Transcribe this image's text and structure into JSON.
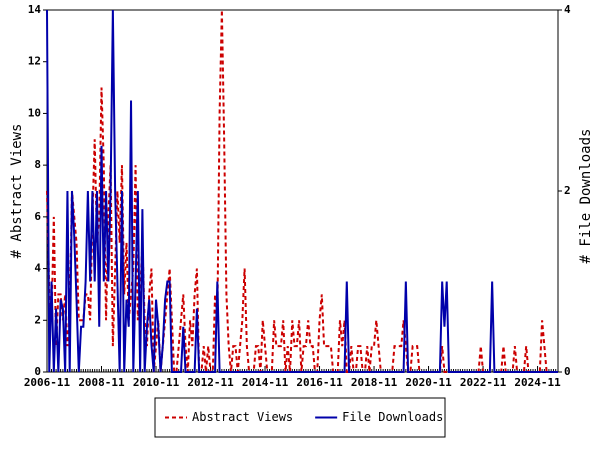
{
  "chart_data": {
    "type": "line",
    "ylabel": "# Abstract Views",
    "y2label": "# File Downloads",
    "categories": [
      "2006-11",
      null,
      null,
      null,
      null,
      null,
      null,
      null,
      null,
      null,
      null,
      null,
      null,
      null,
      null,
      null,
      null,
      null,
      null,
      null,
      null,
      null,
      null,
      null,
      "2008-11",
      null,
      null,
      null,
      null,
      null,
      null,
      null,
      null,
      null,
      null,
      null,
      null,
      null,
      null,
      null,
      null,
      null,
      null,
      null,
      null,
      null,
      null,
      null,
      "2010-11",
      null,
      null,
      null,
      null,
      null,
      null,
      null,
      null,
      null,
      null,
      null,
      null,
      null,
      null,
      null,
      null,
      null,
      null,
      null,
      null,
      null,
      null,
      null,
      "2012-11",
      null,
      null,
      null,
      null,
      null,
      null,
      null,
      null,
      null,
      null,
      null,
      null,
      null,
      null,
      null,
      null,
      null,
      null,
      null,
      null,
      null,
      null,
      null,
      "2014-11",
      null,
      null,
      null,
      null,
      null,
      null,
      null,
      null,
      null,
      null,
      null,
      null,
      null,
      null,
      null,
      null,
      null,
      null,
      null,
      null,
      null,
      null,
      null,
      "2016-11",
      null,
      null,
      null,
      null,
      null,
      null,
      null,
      null,
      null,
      null,
      null,
      null,
      null,
      null,
      null,
      null,
      null,
      null,
      null,
      null,
      null,
      null,
      null,
      "2018-11",
      null,
      null,
      null,
      null,
      null,
      null,
      null,
      null,
      null,
      null,
      null,
      null,
      null,
      null,
      null,
      null,
      null,
      null,
      null,
      null,
      null,
      null,
      null,
      "2020-11",
      null,
      null,
      null,
      null,
      null,
      null,
      null,
      null,
      null,
      null,
      null,
      null,
      null,
      null,
      null,
      null,
      null,
      null,
      null,
      null,
      null,
      null,
      null,
      "2022-11",
      null,
      null,
      null,
      null,
      null,
      null,
      null,
      null,
      null,
      null,
      null,
      null,
      null,
      null,
      null,
      null,
      null,
      null,
      null,
      null,
      null,
      null,
      null,
      "2024-11",
      null,
      null,
      null,
      null,
      null,
      null,
      null,
      null,
      null
    ],
    "series": [
      {
        "name": "Abstract Views",
        "color": "#cc0000",
        "dash": true,
        "values": [
          7,
          3,
          2,
          6,
          1,
          3,
          3,
          2,
          3,
          1,
          2,
          7,
          6,
          5,
          2,
          2,
          2,
          3,
          3,
          2,
          6,
          9,
          5,
          6,
          11,
          8,
          2,
          6,
          8,
          1,
          4,
          7,
          5,
          8,
          3,
          5,
          2,
          3,
          4,
          8,
          2,
          3,
          5,
          2,
          1,
          3,
          4,
          0,
          1,
          2,
          0,
          1,
          2,
          3,
          4,
          2,
          0,
          0,
          1,
          2,
          3,
          1,
          0,
          2,
          1,
          3,
          4,
          0,
          0,
          1,
          0,
          1,
          0,
          0,
          3,
          2,
          10,
          14,
          9,
          3,
          1,
          0,
          1,
          1,
          0,
          1,
          2,
          4,
          1,
          0,
          0,
          0,
          1,
          1,
          0,
          2,
          1,
          0,
          0,
          0,
          2,
          1,
          1,
          1,
          2,
          0,
          1,
          0,
          2,
          1,
          1,
          2,
          0,
          1,
          1,
          2,
          1,
          1,
          0,
          0,
          2,
          3,
          1,
          1,
          1,
          1,
          0,
          0,
          0,
          2,
          1,
          2,
          0,
          0,
          1,
          0,
          0,
          1,
          1,
          0,
          0,
          1,
          0,
          1,
          1,
          2,
          1,
          0,
          0,
          0,
          0,
          0,
          0,
          1,
          1,
          1,
          1,
          2,
          1,
          0,
          0,
          1,
          1,
          1,
          0,
          0,
          0,
          0,
          0,
          0,
          0,
          0,
          0,
          0,
          1,
          0,
          0,
          0,
          0,
          0,
          0,
          0,
          0,
          0,
          0,
          0,
          0,
          0,
          0,
          0,
          0,
          1,
          0,
          0,
          0,
          0,
          0,
          0,
          0,
          0,
          0,
          1,
          0,
          0,
          0,
          0,
          1,
          0,
          0,
          0,
          0,
          1,
          0,
          0,
          0,
          0,
          0,
          0,
          2,
          1,
          0,
          0,
          0,
          0,
          0,
          0
        ]
      },
      {
        "name": "File Downloads",
        "color": "#0000aa",
        "axis": "y2",
        "values": [
          4,
          0,
          1,
          0,
          0.7,
          0,
          0.8,
          0.7,
          0,
          2,
          0,
          2,
          1.5,
          0.8,
          0,
          0.5,
          0.5,
          1,
          2,
          1,
          2,
          1,
          2,
          0.5,
          2.5,
          1,
          2,
          1,
          2,
          4,
          2,
          1,
          0,
          2,
          0,
          0.8,
          0.5,
          3,
          0,
          1,
          2,
          0,
          1.8,
          0,
          0.5,
          0.8,
          0.3,
          0,
          0.8,
          0.5,
          0,
          0.3,
          0.8,
          1,
          1,
          0,
          0,
          0,
          0,
          0,
          0.5,
          0,
          0,
          0,
          0,
          0,
          0.7,
          0,
          0,
          0,
          0,
          0,
          0,
          0,
          0,
          1,
          0,
          0,
          0,
          0,
          0,
          0,
          0,
          0,
          0,
          0,
          0,
          0,
          0,
          0,
          0,
          0,
          0,
          0,
          0,
          0,
          0,
          0,
          0,
          0,
          0,
          0,
          0,
          0,
          0,
          0,
          0,
          0,
          0,
          0,
          0,
          0,
          0,
          0,
          0,
          0,
          0,
          0,
          0,
          0,
          0,
          0,
          0,
          0,
          0,
          0,
          0,
          0,
          0,
          0,
          0,
          0,
          1,
          0,
          0,
          0,
          0,
          0,
          0,
          0,
          0,
          0,
          0,
          0,
          0,
          0,
          0,
          0,
          0,
          0,
          0,
          0,
          0,
          0,
          0,
          0,
          0,
          0,
          1,
          0,
          0,
          0,
          0,
          0,
          0,
          0,
          0,
          0,
          0,
          0,
          0,
          0,
          0,
          0,
          1,
          0.5,
          1,
          0,
          0,
          0,
          0,
          0,
          0,
          0,
          0,
          0,
          0,
          0,
          0,
          0,
          0,
          0,
          0,
          0,
          0,
          0,
          1,
          0,
          0,
          0,
          0,
          0,
          0,
          0,
          0,
          0,
          0,
          0,
          0,
          0,
          0,
          0,
          0,
          0,
          0,
          0,
          0,
          0,
          0,
          0,
          0,
          0,
          0,
          0,
          0,
          0
        ]
      }
    ],
    "ylim": [
      0,
      14
    ],
    "yticks": [
      0,
      2,
      4,
      6,
      8,
      10,
      12,
      14
    ],
    "y2lim": [
      0,
      4
    ],
    "y2ticks": [
      0,
      2,
      4
    ],
    "grid": false,
    "legend": "bottom"
  }
}
